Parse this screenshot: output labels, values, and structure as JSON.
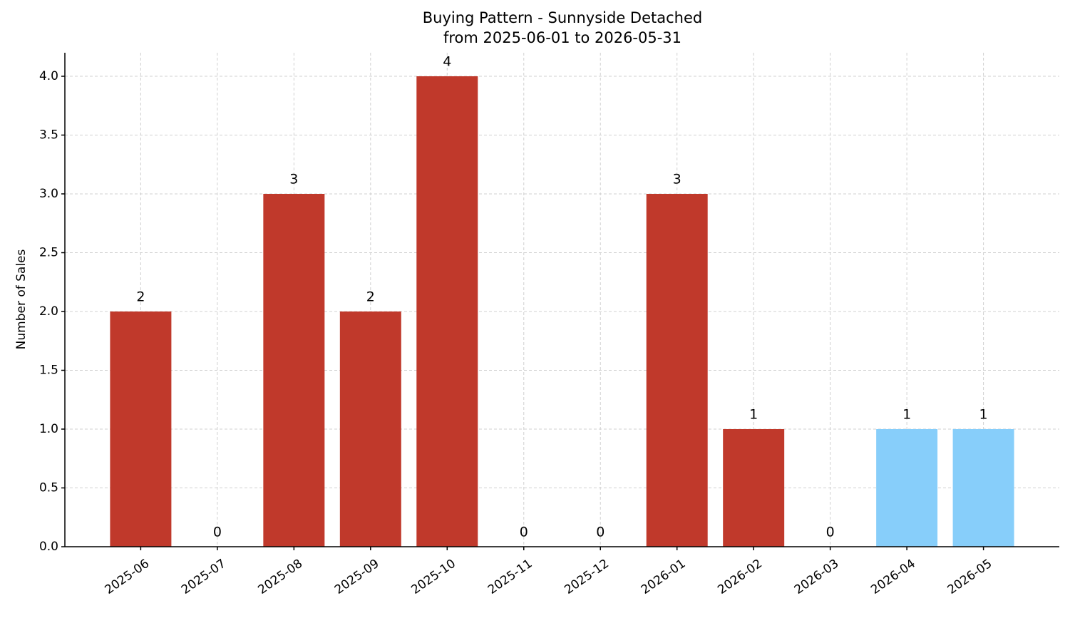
{
  "chart_data": {
    "type": "bar",
    "title": "Buying Pattern - Sunnyside Detached",
    "subtitle": "from 2025-06-01 to 2026-05-31",
    "y_label": "Number of Sales",
    "categories": [
      "2025-06",
      "2025-07",
      "2025-08",
      "2025-09",
      "2025-10",
      "2025-11",
      "2025-12",
      "2026-01",
      "2026-02",
      "2026-03",
      "2026-04",
      "2026-05"
    ],
    "values": [
      2,
      0,
      3,
      2,
      4,
      0,
      0,
      3,
      1,
      0,
      1,
      1
    ],
    "colors": [
      "#c0392b",
      "#c0392b",
      "#c0392b",
      "#c0392b",
      "#c0392b",
      "#c0392b",
      "#c0392b",
      "#c0392b",
      "#c0392b",
      "#c0392b",
      "#87cefa",
      "#87cefa"
    ],
    "ylim": [
      0,
      4.2
    ],
    "yticks": [
      {
        "value": 0,
        "label": "0.0"
      },
      0.5,
      {
        "value": 1,
        "label": "1.0"
      },
      1.5,
      {
        "value": 2,
        "label": "2.0"
      },
      2.5,
      {
        "value": 3,
        "label": "3.0"
      },
      3.5,
      {
        "value": 4,
        "label": "4.0"
      }
    ],
    "grid": true
  }
}
